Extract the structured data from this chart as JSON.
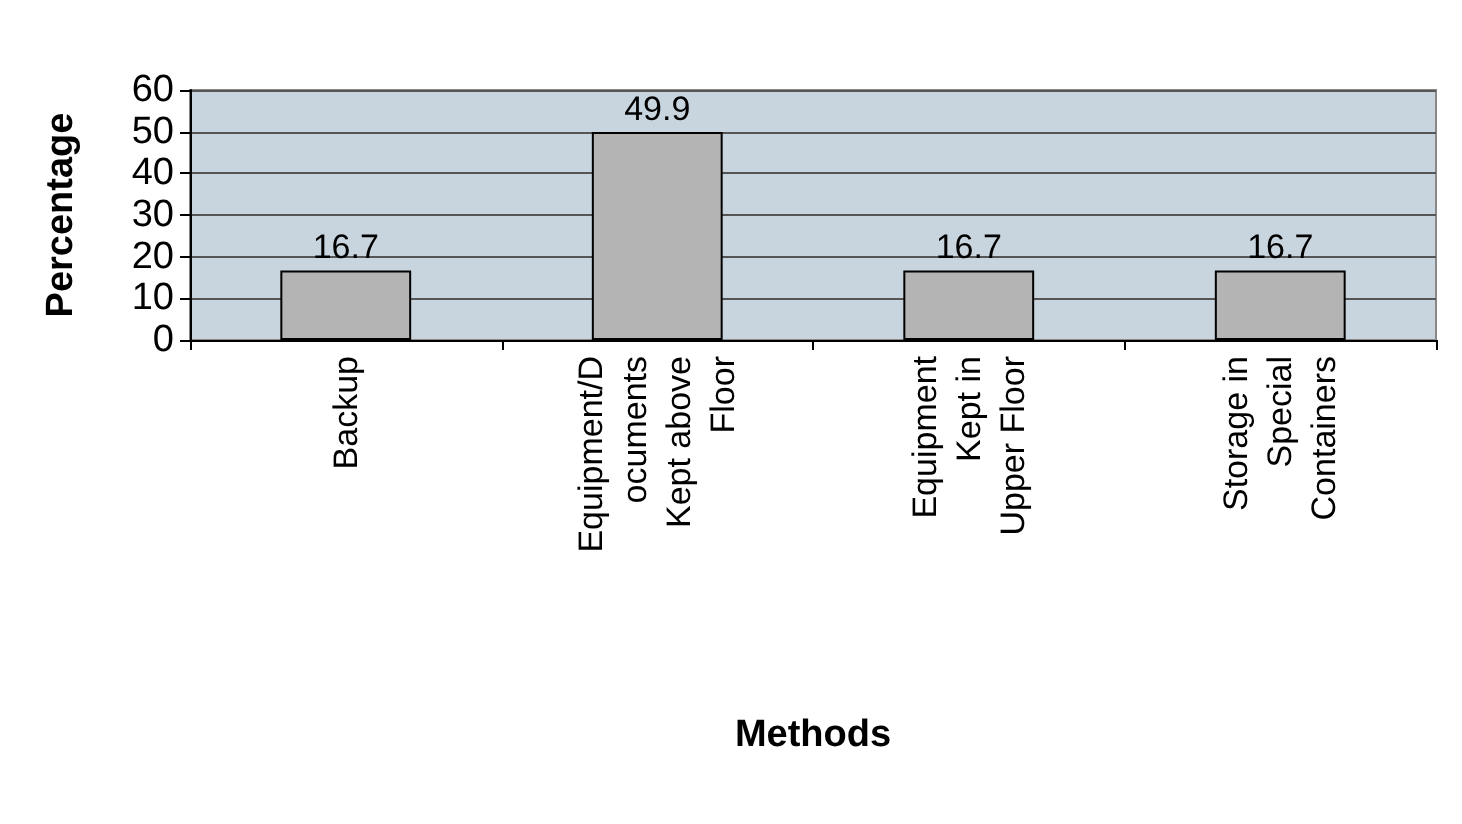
{
  "chart_data": {
    "type": "bar",
    "xlabel": "Methods",
    "ylabel": "Percentage",
    "categories": [
      "Backup",
      "Equipment/D\nocuments\nKept above\nFloor",
      "Equipment\nKept in\nUpper Floor",
      "Storage in\nSpecial\nContainers"
    ],
    "values": [
      16.7,
      49.9,
      16.7,
      16.7
    ],
    "color": "#b4b4b4",
    "ylim": [
      0,
      60
    ],
    "yticks": [
      0,
      10,
      20,
      30,
      40,
      50,
      60
    ],
    "grid": "y",
    "data_labels": true
  }
}
